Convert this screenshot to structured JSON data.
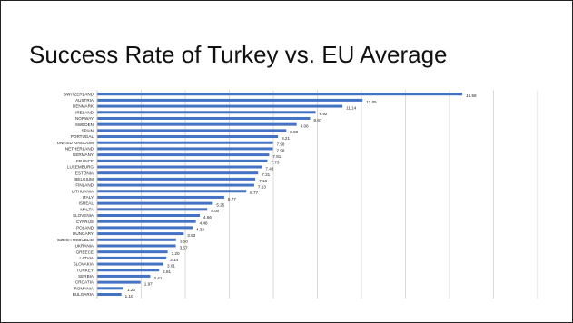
{
  "slide": {
    "title": "Success Rate of Turkey vs. EU Average"
  },
  "chart_data": {
    "type": "bar",
    "orientation": "horizontal",
    "title": "",
    "xlabel": "",
    "ylabel": "",
    "grid": true,
    "bar_color": "#4472C4",
    "xlim": [
      0,
      20
    ],
    "categories": [
      "SWITZERLAND",
      "AUSTRIA",
      "DENMARK",
      "IRELAND",
      "NORWAY",
      "SWEDEN",
      "SPAIN",
      "PORTUGAL",
      "UNITED KINGDOM",
      "NETHERLAND",
      "GERMANY",
      "FRANCE",
      "LUXEMBURG",
      "ESTONIA",
      "BELGIUM",
      "FINLAND",
      "LITHUANIA",
      "ITALY",
      "ISREAL",
      "MALTA",
      "SLOVENIA",
      "CYPRUS",
      "POLAND",
      "HUNGARY",
      "CZECH REBUBLIC",
      "UKRANIA",
      "GREECE",
      "LATVIA",
      "SLOVAKIA",
      "TURKEY",
      "SERBIA",
      "CROATIA",
      "ROMANIA",
      "BULGARIA"
    ],
    "values": [
      16.58,
      12.05,
      11.14,
      9.92,
      9.67,
      9.06,
      8.59,
      8.21,
      7.98,
      7.98,
      7.81,
      7.73,
      7.48,
      7.31,
      7.18,
      7.13,
      6.77,
      5.77,
      5.25,
      5.0,
      4.66,
      4.48,
      4.33,
      3.93,
      3.58,
      3.57,
      3.2,
      3.14,
      3.01,
      2.81,
      2.41,
      1.97,
      1.2,
      1.1
    ],
    "labels": [
      "16.58",
      "12.05",
      "11.14",
      "9.92",
      "9.67",
      "9.06",
      "8.59",
      "8.21",
      "7.98",
      "7.98",
      "7.81",
      "7.73",
      "7.48",
      "7.31",
      "7.18",
      "7.13",
      "6.77",
      "5.77",
      "5.25",
      "5.00",
      "4.66",
      "4.48",
      "4.33",
      "3.93",
      "3.58",
      "3.57",
      "3.20",
      "3.14",
      "3.01",
      "2.81",
      "2.41",
      "1.97",
      "1.20",
      "1.10"
    ]
  }
}
